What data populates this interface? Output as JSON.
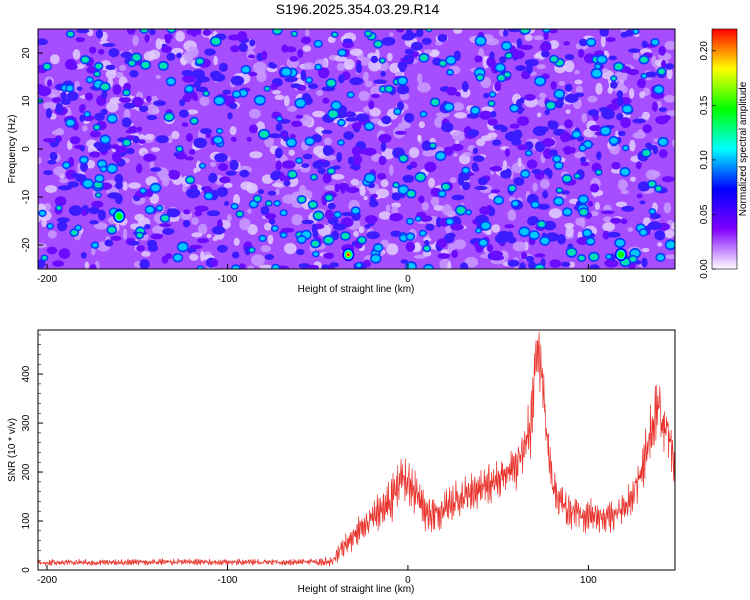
{
  "title": "S196.2025.354.03.29.R14",
  "colors": {
    "line": "#e8322b",
    "background_low": "#ffffff",
    "axis": "#000000"
  },
  "chart_data": [
    {
      "type": "heatmap",
      "name": "spectrogram",
      "xlabel": "Height of straight line (km)",
      "ylabel": "Frequency (Hz)",
      "xlim": [
        -205,
        148
      ],
      "ylim": [
        -25,
        25
      ],
      "xticks": [
        -200,
        -100,
        0,
        100
      ],
      "xtick_labels": [
        "-200",
        "-100",
        "0",
        "100"
      ],
      "yticks": [
        -20,
        -10,
        0,
        10,
        20
      ],
      "ytick_labels": [
        "-20",
        "-10",
        "0",
        "10",
        "20"
      ],
      "colorbar": {
        "label": "Normalized spectral amplitude",
        "range": [
          0,
          0.22
        ],
        "ticks": [
          0.0,
          0.05,
          0.1,
          0.15,
          0.2
        ],
        "tick_labels": [
          "0.00",
          "0.05",
          "0.10",
          "0.15",
          "0.20"
        ],
        "colormap": [
          "#ffffff",
          "#8000ff",
          "#0000ff",
          "#00ffff",
          "#00ff00",
          "#ffff00",
          "#ff0000"
        ]
      },
      "notable_peaks": [
        {
          "x": -33,
          "y": -22,
          "value": 0.21
        },
        {
          "x": 118,
          "y": -22,
          "value": 0.12
        },
        {
          "x": -160,
          "y": -14,
          "value": 0.11
        }
      ]
    },
    {
      "type": "line",
      "name": "snr",
      "xlabel": "Height of straight line (km)",
      "ylabel": "SNR (10 * v/v)",
      "xlim": [
        -205,
        148
      ],
      "ylim": [
        0,
        490
      ],
      "xticks": [
        -200,
        -100,
        0,
        100
      ],
      "xtick_labels": [
        "-200",
        "-100",
        "0",
        "100"
      ],
      "yticks": [
        0,
        100,
        200,
        300,
        400
      ],
      "ytick_labels": [
        "0",
        "100",
        "200",
        "300",
        "400"
      ],
      "series": [
        {
          "name": "SNR",
          "x": [
            -205,
            -190,
            -170,
            -150,
            -130,
            -110,
            -90,
            -70,
            -50,
            -42,
            -38,
            -32,
            -25,
            -20,
            -15,
            -10,
            -6,
            -2,
            0,
            3,
            6,
            10,
            15,
            20,
            25,
            30,
            35,
            40,
            45,
            50,
            55,
            60,
            64,
            68,
            70,
            72,
            74,
            76,
            78,
            80,
            83,
            86,
            90,
            95,
            100,
            105,
            110,
            115,
            120,
            125,
            130,
            135,
            138,
            141,
            144,
            146,
            148
          ],
          "values": [
            15,
            16,
            15,
            16,
            17,
            16,
            16,
            16,
            16,
            18,
            38,
            60,
            85,
            105,
            125,
            135,
            170,
            195,
            190,
            170,
            150,
            120,
            118,
            122,
            140,
            150,
            155,
            170,
            180,
            190,
            200,
            210,
            240,
            290,
            380,
            440,
            400,
            320,
            250,
            180,
            145,
            130,
            120,
            118,
            112,
            110,
            105,
            110,
            125,
            160,
            210,
            290,
            330,
            310,
            280,
            240,
            180
          ],
          "noise": [
            6,
            6,
            6,
            6,
            6,
            6,
            6,
            6,
            6,
            10,
            18,
            25,
            30,
            35,
            40,
            45,
            45,
            45,
            45,
            45,
            40,
            40,
            35,
            35,
            35,
            35,
            35,
            35,
            40,
            40,
            40,
            45,
            50,
            60,
            60,
            55,
            55,
            50,
            45,
            40,
            35,
            35,
            35,
            35,
            35,
            30,
            30,
            30,
            30,
            35,
            45,
            55,
            60,
            60,
            55,
            50,
            40
          ]
        }
      ]
    }
  ]
}
